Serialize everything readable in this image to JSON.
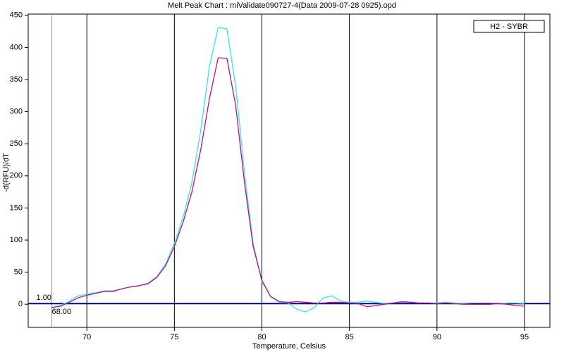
{
  "chart_data": {
    "type": "line",
    "title": "Melt Peak Chart : miValidate090727-4(Data 2009-07-28 0925).opd",
    "x_label": "Temperature, Celsius",
    "y_label": "-d(RFU)/dT",
    "legend": "H2 - SYBR",
    "x": [
      68,
      68.5,
      69,
      69.5,
      70,
      70.5,
      71,
      71.5,
      72,
      72.5,
      73,
      73.5,
      74,
      74.5,
      75,
      75.5,
      76,
      76.5,
      77,
      77.5,
      78,
      78.5,
      79,
      79.5,
      80,
      80.5,
      81,
      81.5,
      82,
      82.5,
      83,
      83.5,
      84,
      84.5,
      85,
      85.5,
      86,
      86.5,
      87,
      87.5,
      88,
      88.5,
      89,
      89.5,
      90,
      90.5,
      91,
      91.5,
      92,
      92.5,
      93,
      93.5,
      94,
      94.5,
      95
    ],
    "series": [
      {
        "color": "#33e6e6",
        "values": [
          -5,
          -2,
          5,
          13,
          16,
          18,
          21,
          21,
          24,
          27,
          29,
          33,
          43,
          63,
          95,
          135,
          190,
          270,
          370,
          431,
          429,
          340,
          205,
          95,
          35,
          12,
          3,
          2,
          -8,
          -12,
          -5,
          10,
          13,
          5,
          3,
          3,
          5,
          3,
          1,
          2,
          3,
          3,
          2,
          2,
          2,
          3,
          2,
          1,
          0,
          0,
          0,
          1,
          2,
          2,
          1
        ]
      },
      {
        "color": "#c0107a",
        "values": [
          -5,
          -3,
          3,
          10,
          14,
          17,
          20,
          20,
          24,
          27,
          29,
          32,
          42,
          60,
          90,
          128,
          175,
          240,
          320,
          384,
          383,
          310,
          190,
          90,
          37,
          12,
          4,
          3,
          4,
          3,
          2,
          2,
          3,
          3,
          2,
          1,
          -4,
          -2,
          0,
          2,
          4,
          3,
          2,
          2,
          1,
          2,
          1,
          0,
          0,
          0,
          0,
          1,
          0,
          -2,
          -3
        ]
      }
    ],
    "xlim": [
      66.65,
      96.45
    ],
    "ylim": [
      -36,
      452
    ],
    "xticks": [
      70,
      75,
      80,
      85,
      90,
      95
    ],
    "yticks": [
      0,
      50,
      100,
      150,
      200,
      250,
      300,
      350,
      400,
      450
    ],
    "grid": "x",
    "threshold": {
      "value": 1,
      "label": "1.00",
      "color": "#000080"
    },
    "marker_x": {
      "value": 68,
      "label": "68.00",
      "color": "#e08050"
    }
  }
}
